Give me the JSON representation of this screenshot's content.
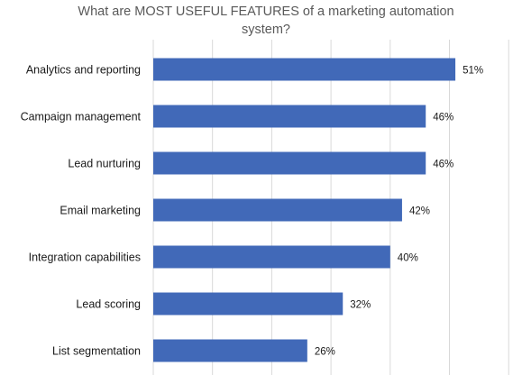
{
  "chart_data": {
    "type": "bar",
    "orientation": "horizontal",
    "title": "What are MOST USEFUL FEATURES of a marketing automation system?",
    "categories": [
      "Analytics and reporting",
      "Campaign management",
      "Lead nurturing",
      "Email marketing",
      "Integration capabilities",
      "Lead scoring",
      "List segmentation"
    ],
    "values": [
      51,
      46,
      46,
      42,
      40,
      32,
      26
    ],
    "value_labels": [
      "51%",
      "46%",
      "46%",
      "42%",
      "40%",
      "32%",
      "26%"
    ],
    "xlim": [
      0,
      60
    ],
    "grid": true,
    "bar_color": "#4169B8",
    "grid_color": "#d9d9d9"
  }
}
